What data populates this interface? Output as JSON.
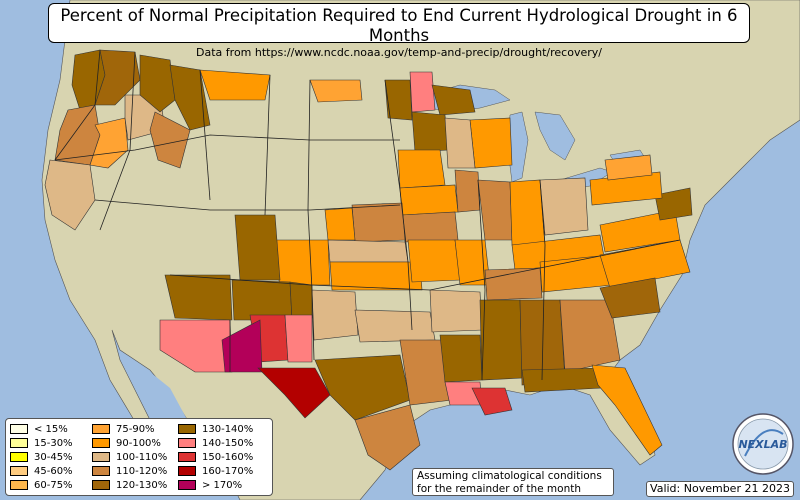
{
  "title": "Percent of Normal Precipitation Required to End Current Hydrological Drought in 6 Months",
  "subtitle": "Data from https://www.ncdc.noaa.gov/temp-and-precip/drought/recovery/",
  "legend": [
    {
      "label": "< 15%",
      "color": "#ffffe6"
    },
    {
      "label": "15-30%",
      "color": "#ffff99"
    },
    {
      "label": "30-45%",
      "color": "#ffff00"
    },
    {
      "label": "45-60%",
      "color": "#ffcc80"
    },
    {
      "label": "60-75%",
      "color": "#ffb84d"
    },
    {
      "label": "75-90%",
      "color": "#ffa333"
    },
    {
      "label": "90-100%",
      "color": "#ff9900"
    },
    {
      "label": "100-110%",
      "color": "#deb887"
    },
    {
      "label": "110-120%",
      "color": "#cd853f"
    },
    {
      "label": "120-130%",
      "color": "#a0660a"
    },
    {
      "label": "130-140%",
      "color": "#996600"
    },
    {
      "label": "140-150%",
      "color": "#ff7f7f"
    },
    {
      "label": "150-160%",
      "color": "#dd3333"
    },
    {
      "label": "160-170%",
      "color": "#b30000"
    },
    {
      "label": "> 170%",
      "color": "#b30059"
    }
  ],
  "note": {
    "line1": "Assuming climatological conditions",
    "line2": "for the remainder of the month"
  },
  "valid": "Valid: November 21 2023",
  "logo": {
    "text": "NEXLAB"
  }
}
